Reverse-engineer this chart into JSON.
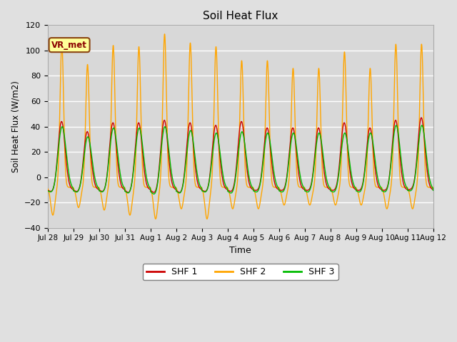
{
  "title": "Soil Heat Flux",
  "xlabel": "Time",
  "ylabel": "Soil Heat Flux (W/m2)",
  "ylim": [
    -40,
    120
  ],
  "yticks": [
    -40,
    -20,
    0,
    20,
    40,
    60,
    80,
    100,
    120
  ],
  "colors": {
    "SHF 1": "#cc0000",
    "SHF 2": "#ffa500",
    "SHF 3": "#00bb00"
  },
  "legend_label": "VR_met",
  "legend_box_color": "#ffff99",
  "legend_box_border": "#8B4513",
  "background_color": "#e0e0e0",
  "plot_bg_color": "#d8d8d8",
  "n_days": 15,
  "tick_labels": [
    "Jul 28",
    "Jul 29",
    "Jul 30",
    "Jul 31",
    "Aug 1",
    "Aug 2",
    "Aug 3",
    "Aug 4",
    "Aug 5",
    "Aug 6",
    "Aug 7",
    "Aug 8",
    "Aug 9",
    "Aug 10",
    "Aug 11",
    "Aug 12"
  ],
  "shf2_peaks": [
    105,
    89,
    104,
    103,
    113,
    106,
    103,
    92,
    92,
    86,
    86,
    99,
    86,
    105,
    105
  ],
  "shf2_mins": [
    -30,
    -24,
    -26,
    -30,
    -33,
    -25,
    -33,
    -25,
    -25,
    -22,
    -22,
    -22,
    -22,
    -25,
    -25
  ],
  "shf1_peaks": [
    34,
    26,
    33,
    33,
    35,
    33,
    31,
    34,
    29,
    29,
    29,
    33,
    29,
    35,
    37
  ],
  "shf1_mins": [
    -12,
    -12,
    -12,
    -13,
    -13,
    -13,
    -12,
    -12,
    -11,
    -11,
    -11,
    -11,
    -11,
    -11,
    -10
  ],
  "shf3_peaks": [
    30,
    22,
    29,
    29,
    30,
    27,
    25,
    26,
    25,
    25,
    25,
    25,
    25,
    31,
    31
  ],
  "shf3_mins": [
    -13,
    -13,
    -13,
    -14,
    -15,
    -14,
    -13,
    -14,
    -13,
    -13,
    -13,
    -13,
    -13,
    -13,
    -12
  ]
}
